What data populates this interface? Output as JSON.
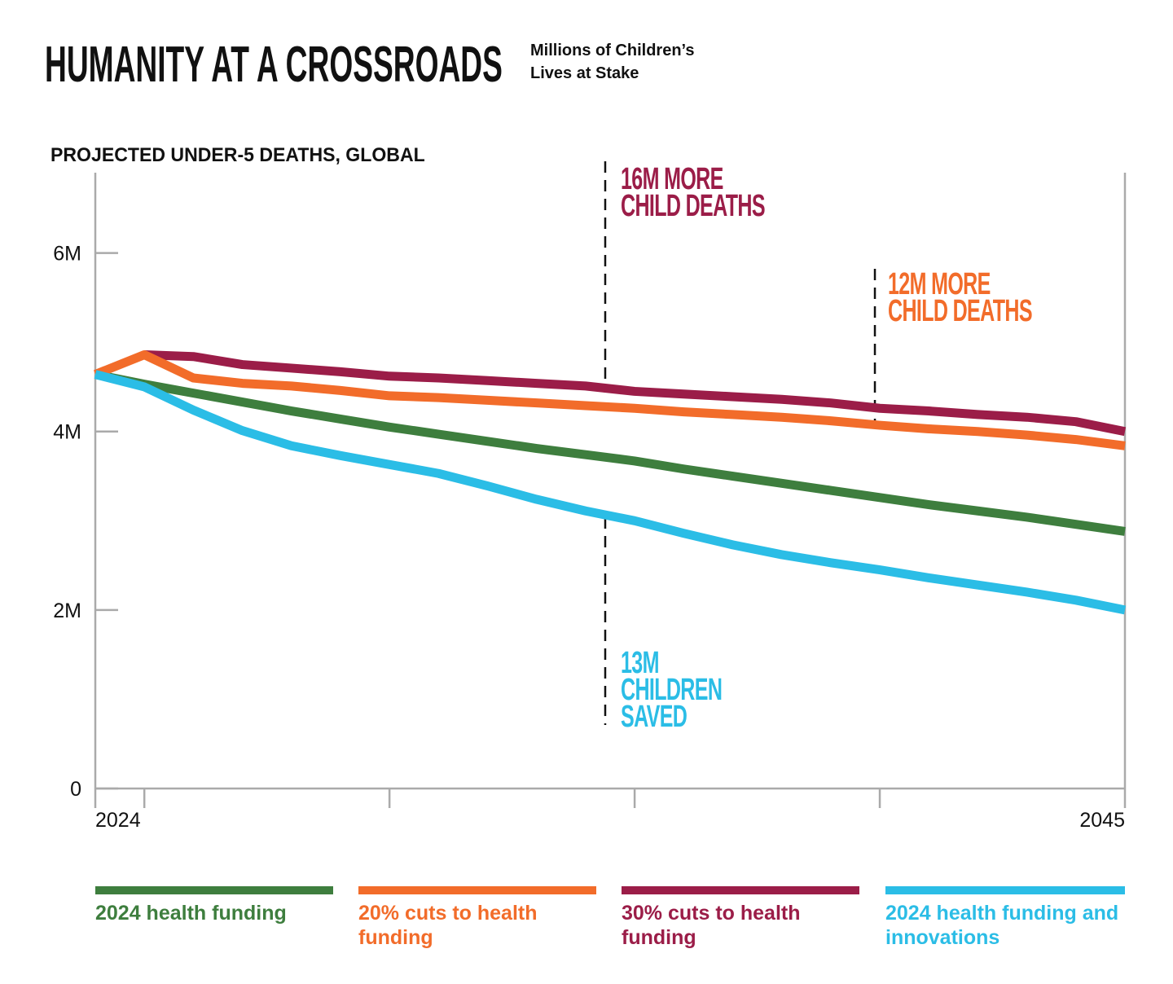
{
  "title": "HUMANITY AT A CROSSROADS",
  "subtitle": "Millions of Children’s Lives at Stake",
  "chart_data": {
    "type": "line",
    "y_label": "PROJECTED UNDER-5 DEATHS, GLOBAL",
    "x": [
      2024,
      2025,
      2026,
      2027,
      2028,
      2029,
      2030,
      2031,
      2032,
      2033,
      2034,
      2035,
      2036,
      2037,
      2038,
      2039,
      2040,
      2041,
      2042,
      2043,
      2044,
      2045
    ],
    "xlim": [
      2024,
      2045
    ],
    "xticks": [
      2024,
      2045
    ],
    "xminorticks": [
      2025,
      2030,
      2035,
      2040
    ],
    "ylim": [
      0,
      6.9
    ],
    "yticks": [
      0,
      {
        "value": 2,
        "label": "2M"
      },
      {
        "value": 4,
        "label": "4M"
      },
      {
        "value": 6,
        "label": "6M"
      }
    ],
    "series": [
      {
        "name": "2024 health funding",
        "color": "#3e7e3e",
        "values": [
          4.64,
          4.53,
          4.43,
          4.33,
          4.23,
          4.14,
          4.05,
          3.97,
          3.89,
          3.81,
          3.74,
          3.67,
          3.58,
          3.5,
          3.42,
          3.34,
          3.26,
          3.18,
          3.11,
          3.04,
          2.96,
          2.88
        ]
      },
      {
        "name": "20% cuts to health funding",
        "color": "#f26c2a",
        "values": [
          4.64,
          4.86,
          4.6,
          4.54,
          4.51,
          4.46,
          4.4,
          4.38,
          4.35,
          4.32,
          4.29,
          4.26,
          4.22,
          4.19,
          4.16,
          4.12,
          4.07,
          4.03,
          4.0,
          3.96,
          3.91,
          3.84
        ]
      },
      {
        "name": "30% cuts to health funding",
        "color": "#9b1d48",
        "values": [
          null,
          4.86,
          4.84,
          4.75,
          4.71,
          4.67,
          4.62,
          4.6,
          4.57,
          4.54,
          4.51,
          4.45,
          4.42,
          4.39,
          4.36,
          4.32,
          4.26,
          4.23,
          4.19,
          4.16,
          4.11,
          4.0
        ]
      },
      {
        "name": "2024 health funding and innovations",
        "color": "#2bbde6",
        "values": [
          4.64,
          4.5,
          4.24,
          4.01,
          3.84,
          3.73,
          3.63,
          3.53,
          3.39,
          3.24,
          3.11,
          3.0,
          2.86,
          2.73,
          2.62,
          2.53,
          2.45,
          2.36,
          2.28,
          2.2,
          2.11,
          2.0
        ]
      }
    ],
    "annotations": [
      {
        "lines": [
          "16M MORE",
          "CHILD DEATHS"
        ],
        "x": 2034.4,
        "color": "#9b1d48"
      },
      {
        "lines": [
          "12M MORE",
          "CHILD DEATHS"
        ],
        "x": 2039.9,
        "color": "#f26c2a"
      },
      {
        "lines": [
          "13M",
          "CHILDREN",
          "SAVED"
        ],
        "x": 2034.4,
        "color": "#2bbde6"
      }
    ]
  }
}
